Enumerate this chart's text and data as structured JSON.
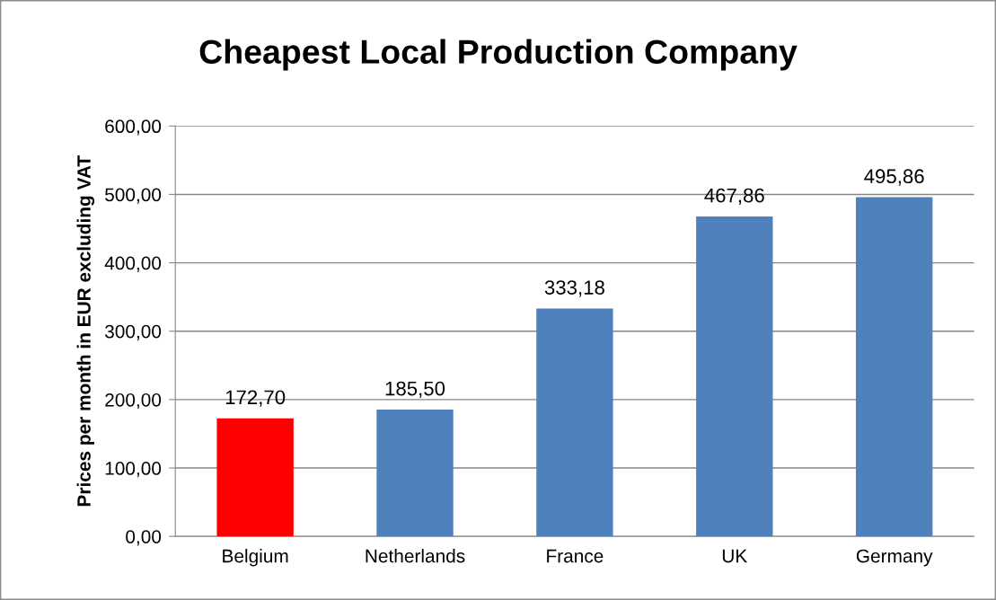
{
  "chart_data": {
    "type": "bar",
    "title": "Cheapest Local Production Company",
    "ylabel": "Prices per month in EUR excluding VAT",
    "categories": [
      "Belgium",
      "Netherlands",
      "France",
      "UK",
      "Germany"
    ],
    "values": [
      172.7,
      185.5,
      333.18,
      467.86,
      495.86
    ],
    "colors": [
      "#ff0000",
      "#4f81bd",
      "#4f81bd",
      "#4f81bd",
      "#4f81bd"
    ],
    "value_labels": [
      "172,70",
      "185,50",
      "333,18",
      "467,86",
      "495,86"
    ],
    "ylim": [
      0,
      600
    ],
    "yticks": [
      {
        "value": 0,
        "label": "0,00"
      },
      {
        "value": 100,
        "label": "100,00"
      },
      {
        "value": 200,
        "label": "200,00"
      },
      {
        "value": 300,
        "label": "300,00"
      },
      {
        "value": 400,
        "label": "400,00"
      },
      {
        "value": 500,
        "label": "500,00"
      },
      {
        "value": 600,
        "label": "600,00"
      }
    ],
    "grid": "y"
  }
}
